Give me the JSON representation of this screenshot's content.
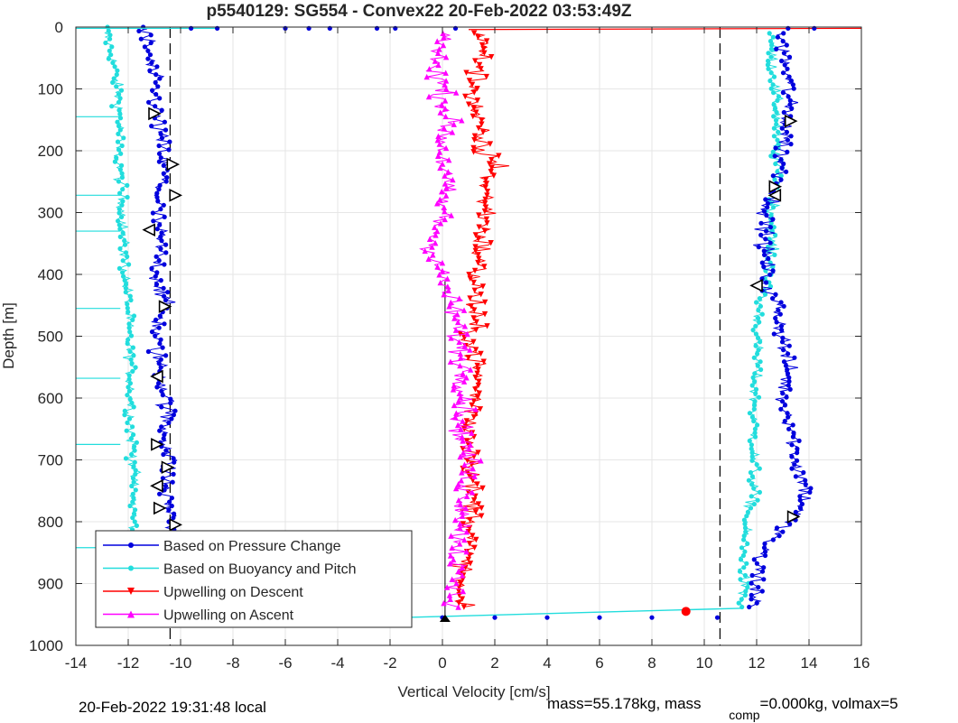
{
  "chart_data": {
    "type": "scatter",
    "title": "p5540129: SG554 - Convex22 20-Feb-2022 03:53:49Z",
    "xlabel": "Vertical Velocity [cm/s]",
    "ylabel": "Depth [m]",
    "xlim": [
      -14,
      16
    ],
    "ylim": [
      0,
      1000
    ],
    "y_reversed": true,
    "grid": true,
    "x_ticks": [
      "-14",
      "-12",
      "-10",
      "-8",
      "-6",
      "-4",
      "-2",
      "0",
      "2",
      "4",
      "6",
      "8",
      "10",
      "12",
      "14",
      "16"
    ],
    "y_ticks": [
      "0",
      "100",
      "200",
      "300",
      "400",
      "500",
      "600",
      "700",
      "800",
      "900",
      "1000"
    ],
    "reference_lines": {
      "dashed_x": [
        -10.4,
        10.6
      ],
      "solid_x": 0.1,
      "solid_x_depth_range": [
        410,
        960
      ]
    },
    "legend": {
      "position": "bottom-left",
      "entries": [
        {
          "label": "Based on Pressure Change",
          "color": "#0000dd",
          "marker": "dot"
        },
        {
          "label": "Based on Buoyancy and Pitch",
          "color": "#22dddd",
          "marker": "dot"
        },
        {
          "label": "Upwelling on Descent",
          "color": "#ff0000",
          "marker": "triangle-down"
        },
        {
          "label": "Upwelling on Ascent",
          "color": "#ff00ff",
          "marker": "triangle-up"
        }
      ]
    },
    "series": [
      {
        "name": "Based on Pressure Change",
        "color": "#0000dd",
        "descent": {
          "depth": [
            0,
            50,
            100,
            150,
            200,
            230,
            260,
            300,
            350,
            400,
            450,
            500,
            550,
            600,
            650,
            700,
            750,
            800,
            850,
            900,
            940
          ],
          "velocity": [
            -11.4,
            -11.2,
            -11.0,
            -10.9,
            -10.7,
            -10.6,
            -10.8,
            -10.9,
            -10.8,
            -10.9,
            -10.6,
            -11.0,
            -10.8,
            -10.5,
            -10.6,
            -10.4,
            -10.6,
            -10.3,
            -10.6,
            -10.9,
            -11.0
          ]
        },
        "ascent": {
          "depth": [
            940,
            900,
            850,
            800,
            780,
            750,
            700,
            650,
            600,
            550,
            500,
            450,
            420,
            400,
            350,
            300,
            250,
            200,
            150,
            100,
            50,
            10
          ],
          "velocity": [
            11.9,
            12.0,
            12.1,
            13.2,
            13.7,
            13.9,
            13.5,
            13.4,
            13.0,
            13.2,
            13.0,
            12.8,
            12.3,
            12.4,
            12.3,
            12.4,
            12.9,
            13.0,
            13.2,
            13.2,
            13.1,
            12.9
          ]
        }
      },
      {
        "name": "Based on Buoyancy and Pitch",
        "color": "#22dddd",
        "descent": {
          "depth": [
            0,
            50,
            100,
            150,
            200,
            250,
            300,
            350,
            400,
            450,
            500,
            550,
            600,
            650,
            700,
            750,
            800,
            850,
            900,
            940
          ],
          "velocity": [
            -12.9,
            -12.6,
            -12.4,
            -12.3,
            -12.4,
            -12.3,
            -12.2,
            -12.2,
            -12.1,
            -12.0,
            -12.0,
            -11.9,
            -11.9,
            -11.9,
            -11.8,
            -11.8,
            -11.8,
            -11.7,
            -11.7,
            -11.6
          ]
        },
        "ascent": {
          "depth": [
            940,
            900,
            850,
            800,
            750,
            700,
            650,
            600,
            550,
            500,
            450,
            400,
            350,
            300,
            250,
            200,
            150,
            100,
            50,
            10
          ],
          "velocity": [
            11.4,
            11.5,
            11.5,
            11.6,
            11.9,
            11.9,
            11.9,
            11.9,
            12.0,
            12.0,
            12.1,
            12.5,
            12.6,
            12.6,
            12.8,
            12.7,
            12.8,
            12.7,
            12.6,
            12.6
          ]
        }
      },
      {
        "name": "Upwelling on Descent",
        "color": "#ff0000",
        "depth": [
          10,
          50,
          100,
          150,
          200,
          225,
          250,
          300,
          350,
          400,
          450,
          500,
          550,
          600,
          650,
          700,
          750,
          800,
          850,
          900,
          940
        ],
        "velocity": [
          1.5,
          1.5,
          1.2,
          1.3,
          1.5,
          2.2,
          1.6,
          1.7,
          1.5,
          1.3,
          1.2,
          1.1,
          1.3,
          1.3,
          1.1,
          1.2,
          1.1,
          1.2,
          0.9,
          0.6,
          0.6
        ]
      },
      {
        "name": "Upwelling on Ascent",
        "color": "#ff00ff",
        "depth": [
          10,
          50,
          100,
          150,
          200,
          250,
          300,
          350,
          400,
          450,
          500,
          550,
          600,
          650,
          700,
          750,
          800,
          850,
          900,
          940
        ],
        "velocity": [
          0.2,
          -0.3,
          0.0,
          0.2,
          0.0,
          0.1,
          0.0,
          -0.4,
          -0.1,
          0.4,
          0.6,
          0.8,
          0.9,
          0.7,
          1.0,
          0.9,
          0.8,
          0.6,
          0.5,
          0.4
        ]
      }
    ],
    "bottom_transect": {
      "depth": 955,
      "velocity": [
        -2,
        0,
        2,
        4,
        6,
        8,
        10.5
      ]
    },
    "red_marker": {
      "velocity": 9.3,
      "depth": 945
    }
  },
  "footer": {
    "local_time": "20-Feb-2022 19:31:48 local",
    "mass_text": "mass=55.178kg, mass",
    "comp_subscript": "comp",
    "volmax_text": "=0.000kg, volmax=5"
  }
}
